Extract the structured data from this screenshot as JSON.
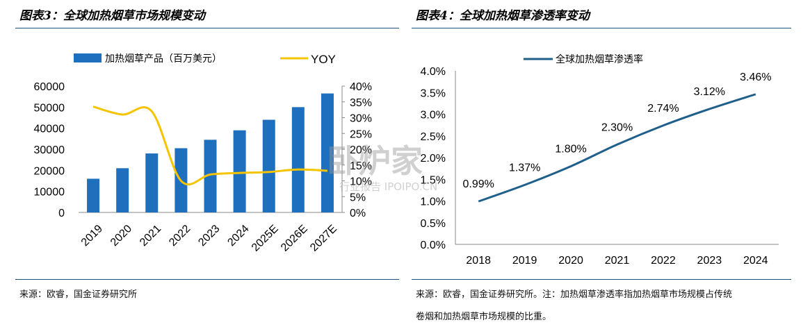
{
  "left": {
    "title": "图表3：全球加热烟草市场规模变动",
    "source": "来源：欧睿，国金证券研究所"
  },
  "right": {
    "title": "图表4：全球加热烟草渗透率变动",
    "source_line1": "来源：欧睿，国金证券研究所。注：加热烟草渗透率指加热烟草市场规模占传统",
    "source_line2": "卷烟和加热烟草市场规模的比重。"
  },
  "watermark": {
    "main": "卧炉家",
    "sub": "行业报告 IPOIPO.CN"
  },
  "colors": {
    "bar": "#1f6fbf",
    "yoy": "#f5c400",
    "penetration": "#1f5f8b",
    "text": "#000000"
  },
  "chart_data": [
    {
      "type": "bar",
      "categories": [
        "2019",
        "2020",
        "2021",
        "2022",
        "2023",
        "2024",
        "2025E",
        "2026E",
        "2027E"
      ],
      "series": [
        {
          "name": "加热烟草产品（百万美元）",
          "type": "bar",
          "axis": "left",
          "values": [
            16000,
            21000,
            28000,
            30500,
            34500,
            39000,
            44000,
            50000,
            56500
          ]
        },
        {
          "name": "YOY",
          "type": "line",
          "axis": "right",
          "values": [
            33.5,
            31,
            32,
            10,
            12,
            12.5,
            12.8,
            13.6,
            13.2
          ]
        }
      ],
      "yticks_left": [
        "0",
        "10000",
        "20000",
        "30000",
        "40000",
        "50000",
        "60000"
      ],
      "yticks_right": [
        "0%",
        "5%",
        "10%",
        "15%",
        "20%",
        "25%",
        "30%",
        "35%",
        "40%"
      ],
      "ylim_left": [
        0,
        60000
      ],
      "ylim_right": [
        0,
        40
      ],
      "legend_position": "top",
      "grid": false
    },
    {
      "type": "line",
      "x": [
        "2018",
        "2019",
        "2020",
        "2021",
        "2022",
        "2023",
        "2024"
      ],
      "series": [
        {
          "name": "全球加热烟草渗透率",
          "values": [
            0.99,
            1.37,
            1.8,
            2.3,
            2.74,
            3.12,
            3.46
          ],
          "labels": [
            "0.99%",
            "1.37%",
            "1.80%",
            "2.30%",
            "2.74%",
            "3.12%",
            "3.46%"
          ]
        }
      ],
      "yticks": [
        "0.0%",
        "0.5%",
        "1.0%",
        "1.5%",
        "2.0%",
        "2.5%",
        "3.0%",
        "3.5%",
        "4.0%"
      ],
      "ylim": [
        0,
        4.0
      ],
      "legend_position": "top",
      "grid": false
    }
  ]
}
